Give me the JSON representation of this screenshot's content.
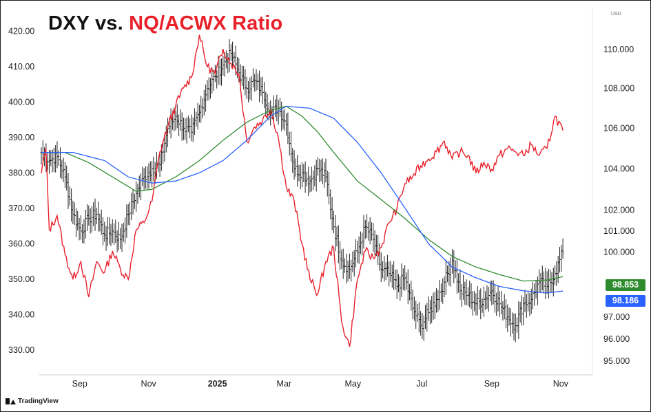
{
  "title": {
    "part1": "DXY vs.",
    "part2": "NQ/ACWX Ratio"
  },
  "colors": {
    "ratio": "#e8202a",
    "ma_green": "#2e8b2e",
    "ma_blue": "#2962ff",
    "bars": "#222222"
  },
  "brand": {
    "name": "TradingView"
  },
  "chart_data": {
    "type": "line",
    "x_axis": {
      "ticks": [
        "Sep",
        "Nov",
        "2025",
        "Mar",
        "May",
        "Jul",
        "Sep",
        "Nov"
      ],
      "range": [
        "2024-07-29",
        "2025-11-06"
      ]
    },
    "left_axis": {
      "ticks": [
        420,
        410,
        400,
        390,
        380,
        370,
        360,
        350,
        340,
        330
      ],
      "range": [
        325,
        423
      ]
    },
    "right_axis": {
      "unit": "USD",
      "ticks": [
        110,
        108,
        106,
        104,
        102,
        101,
        100,
        97,
        96,
        95
      ],
      "tick_labels": [
        "110.000",
        "108.000",
        "106.000",
        "104.000",
        "102.000",
        "101.000",
        "100.000",
        "97.000",
        "96.000",
        "95.000"
      ],
      "scale": "log",
      "range": [
        94.7,
        111.5
      ]
    },
    "series": [
      {
        "name": "NQ/ACWX Ratio",
        "axis": "left",
        "kind": "line",
        "points": [
          [
            "2024-07-29",
            380
          ],
          [
            "2024-08-02",
            387
          ],
          [
            "2024-08-05",
            364
          ],
          [
            "2024-08-12",
            368
          ],
          [
            "2024-08-19",
            357
          ],
          [
            "2024-08-26",
            350
          ],
          [
            "2024-09-02",
            355
          ],
          [
            "2024-09-09",
            345
          ],
          [
            "2024-09-16",
            355
          ],
          [
            "2024-09-23",
            352
          ],
          [
            "2024-09-30",
            358
          ],
          [
            "2024-10-07",
            353
          ],
          [
            "2024-10-14",
            350
          ],
          [
            "2024-10-21",
            364
          ],
          [
            "2024-10-28",
            366
          ],
          [
            "2024-11-04",
            372
          ],
          [
            "2024-11-11",
            386
          ],
          [
            "2024-11-18",
            393
          ],
          [
            "2024-11-25",
            399
          ],
          [
            "2024-12-02",
            404
          ],
          [
            "2024-12-09",
            407
          ],
          [
            "2024-12-16",
            419
          ],
          [
            "2024-12-23",
            410
          ],
          [
            "2024-12-30",
            408
          ],
          [
            "2025-01-06",
            415
          ],
          [
            "2025-01-13",
            411
          ],
          [
            "2025-01-20",
            408
          ],
          [
            "2025-01-27",
            389
          ],
          [
            "2025-02-03",
            393
          ],
          [
            "2025-02-10",
            395
          ],
          [
            "2025-02-17",
            398
          ],
          [
            "2025-02-24",
            390
          ],
          [
            "2025-03-03",
            376
          ],
          [
            "2025-03-10",
            372
          ],
          [
            "2025-03-17",
            360
          ],
          [
            "2025-03-24",
            350
          ],
          [
            "2025-03-31",
            346
          ],
          [
            "2025-04-07",
            355
          ],
          [
            "2025-04-14",
            359
          ],
          [
            "2025-04-21",
            338
          ],
          [
            "2025-04-28",
            331
          ],
          [
            "2025-05-05",
            350
          ],
          [
            "2025-05-12",
            358
          ],
          [
            "2025-05-19",
            356
          ],
          [
            "2025-05-26",
            359
          ],
          [
            "2025-06-02",
            366
          ],
          [
            "2025-06-09",
            370
          ],
          [
            "2025-06-16",
            377
          ],
          [
            "2025-06-23",
            379
          ],
          [
            "2025-06-30",
            382
          ],
          [
            "2025-07-07",
            384
          ],
          [
            "2025-07-14",
            386
          ],
          [
            "2025-07-21",
            389
          ],
          [
            "2025-07-28",
            384
          ],
          [
            "2025-08-04",
            386
          ],
          [
            "2025-08-11",
            385
          ],
          [
            "2025-08-18",
            380
          ],
          [
            "2025-08-25",
            383
          ],
          [
            "2025-09-01",
            381
          ],
          [
            "2025-09-08",
            385
          ],
          [
            "2025-09-15",
            387
          ],
          [
            "2025-09-22",
            386
          ],
          [
            "2025-09-29",
            385
          ],
          [
            "2025-10-06",
            388
          ],
          [
            "2025-10-13",
            385
          ],
          [
            "2025-10-20",
            387
          ],
          [
            "2025-10-27",
            396
          ],
          [
            "2025-11-03",
            392
          ]
        ]
      },
      {
        "name": "DXY",
        "axis": "right",
        "kind": "ohlc",
        "points": [
          [
            "2024-07-29",
            104.8
          ],
          [
            "2024-08-05",
            104.4
          ],
          [
            "2024-08-12",
            104.6
          ],
          [
            "2024-08-19",
            103.6
          ],
          [
            "2024-08-26",
            101.8
          ],
          [
            "2024-09-02",
            101.0
          ],
          [
            "2024-09-09",
            101.6
          ],
          [
            "2024-09-16",
            101.8
          ],
          [
            "2024-09-23",
            100.8
          ],
          [
            "2024-09-30",
            101.0
          ],
          [
            "2024-10-07",
            100.6
          ],
          [
            "2024-10-14",
            101.8
          ],
          [
            "2024-10-21",
            102.8
          ],
          [
            "2024-10-28",
            103.6
          ],
          [
            "2024-11-04",
            104.0
          ],
          [
            "2024-11-11",
            104.2
          ],
          [
            "2024-11-18",
            106.0
          ],
          [
            "2024-11-25",
            106.6
          ],
          [
            "2024-12-02",
            106.0
          ],
          [
            "2024-12-09",
            105.8
          ],
          [
            "2024-12-16",
            106.8
          ],
          [
            "2024-12-23",
            108.0
          ],
          [
            "2024-12-30",
            108.6
          ],
          [
            "2025-01-06",
            109.2
          ],
          [
            "2025-01-13",
            109.8
          ],
          [
            "2025-01-20",
            108.8
          ],
          [
            "2025-01-27",
            108.0
          ],
          [
            "2025-02-03",
            108.4
          ],
          [
            "2025-02-10",
            107.8
          ],
          [
            "2025-02-17",
            106.8
          ],
          [
            "2025-02-24",
            107.0
          ],
          [
            "2025-03-03",
            106.2
          ],
          [
            "2025-03-10",
            104.0
          ],
          [
            "2025-03-17",
            103.8
          ],
          [
            "2025-03-24",
            103.4
          ],
          [
            "2025-03-31",
            104.0
          ],
          [
            "2025-04-07",
            103.6
          ],
          [
            "2025-04-14",
            101.2
          ],
          [
            "2025-04-21",
            99.6
          ],
          [
            "2025-04-28",
            99.2
          ],
          [
            "2025-05-05",
            100.0
          ],
          [
            "2025-05-12",
            101.2
          ],
          [
            "2025-05-19",
            100.6
          ],
          [
            "2025-05-26",
            99.2
          ],
          [
            "2025-06-02",
            99.0
          ],
          [
            "2025-06-09",
            98.4
          ],
          [
            "2025-06-16",
            98.8
          ],
          [
            "2025-06-23",
            97.4
          ],
          [
            "2025-06-30",
            96.6
          ],
          [
            "2025-07-07",
            97.2
          ],
          [
            "2025-07-14",
            97.8
          ],
          [
            "2025-07-21",
            98.6
          ],
          [
            "2025-07-28",
            99.6
          ],
          [
            "2025-08-04",
            98.2
          ],
          [
            "2025-08-11",
            98.0
          ],
          [
            "2025-08-18",
            97.6
          ],
          [
            "2025-08-25",
            97.8
          ],
          [
            "2025-09-01",
            98.2
          ],
          [
            "2025-09-08",
            97.6
          ],
          [
            "2025-09-15",
            97.0
          ],
          [
            "2025-09-22",
            96.6
          ],
          [
            "2025-09-29",
            97.6
          ],
          [
            "2025-10-06",
            97.8
          ],
          [
            "2025-10-13",
            98.6
          ],
          [
            "2025-10-20",
            98.4
          ],
          [
            "2025-10-27",
            99.0
          ],
          [
            "2025-11-03",
            100.0
          ]
        ]
      },
      {
        "name": "",
        "axis": "right",
        "kind": "line",
        "color_key": "ma_green",
        "last_value": 98.853,
        "last_label": "98.853",
        "points": [
          [
            "2024-07-29",
            104.8
          ],
          [
            "2024-08-19",
            104.8
          ],
          [
            "2024-09-09",
            104.3
          ],
          [
            "2024-09-30",
            103.6
          ],
          [
            "2024-10-21",
            102.9
          ],
          [
            "2024-11-04",
            103.0
          ],
          [
            "2024-11-25",
            103.6
          ],
          [
            "2024-12-16",
            104.4
          ],
          [
            "2025-01-06",
            105.4
          ],
          [
            "2025-01-27",
            106.3
          ],
          [
            "2025-02-17",
            106.9
          ],
          [
            "2025-03-03",
            107.1
          ],
          [
            "2025-03-17",
            106.6
          ],
          [
            "2025-03-31",
            105.8
          ],
          [
            "2025-04-14",
            104.8
          ],
          [
            "2025-05-05",
            103.4
          ],
          [
            "2025-05-26",
            102.5
          ],
          [
            "2025-06-16",
            101.6
          ],
          [
            "2025-07-07",
            100.6
          ],
          [
            "2025-07-28",
            99.8
          ],
          [
            "2025-08-18",
            99.3
          ],
          [
            "2025-09-08",
            98.95
          ],
          [
            "2025-09-29",
            98.65
          ],
          [
            "2025-10-20",
            98.7
          ],
          [
            "2025-11-03",
            98.853
          ]
        ]
      },
      {
        "name": "",
        "axis": "right",
        "kind": "line",
        "color_key": "ma_blue",
        "last_value": 98.186,
        "last_label": "98.186",
        "points": [
          [
            "2024-07-29",
            104.8
          ],
          [
            "2024-08-26",
            104.8
          ],
          [
            "2024-09-23",
            104.4
          ],
          [
            "2024-10-14",
            103.6
          ],
          [
            "2024-11-04",
            103.3
          ],
          [
            "2024-11-25",
            103.4
          ],
          [
            "2024-12-16",
            103.8
          ],
          [
            "2025-01-06",
            104.4
          ],
          [
            "2025-01-27",
            105.4
          ],
          [
            "2025-02-17",
            106.6
          ],
          [
            "2025-03-03",
            107.1
          ],
          [
            "2025-03-24",
            107.0
          ],
          [
            "2025-04-14",
            106.5
          ],
          [
            "2025-05-05",
            105.3
          ],
          [
            "2025-05-26",
            103.8
          ],
          [
            "2025-06-16",
            102.1
          ],
          [
            "2025-07-07",
            100.4
          ],
          [
            "2025-07-28",
            99.3
          ],
          [
            "2025-08-18",
            98.8
          ],
          [
            "2025-09-08",
            98.4
          ],
          [
            "2025-09-29",
            98.2
          ],
          [
            "2025-10-20",
            98.1
          ],
          [
            "2025-11-03",
            98.186
          ]
        ]
      }
    ],
    "legend": "none",
    "grid": false
  }
}
